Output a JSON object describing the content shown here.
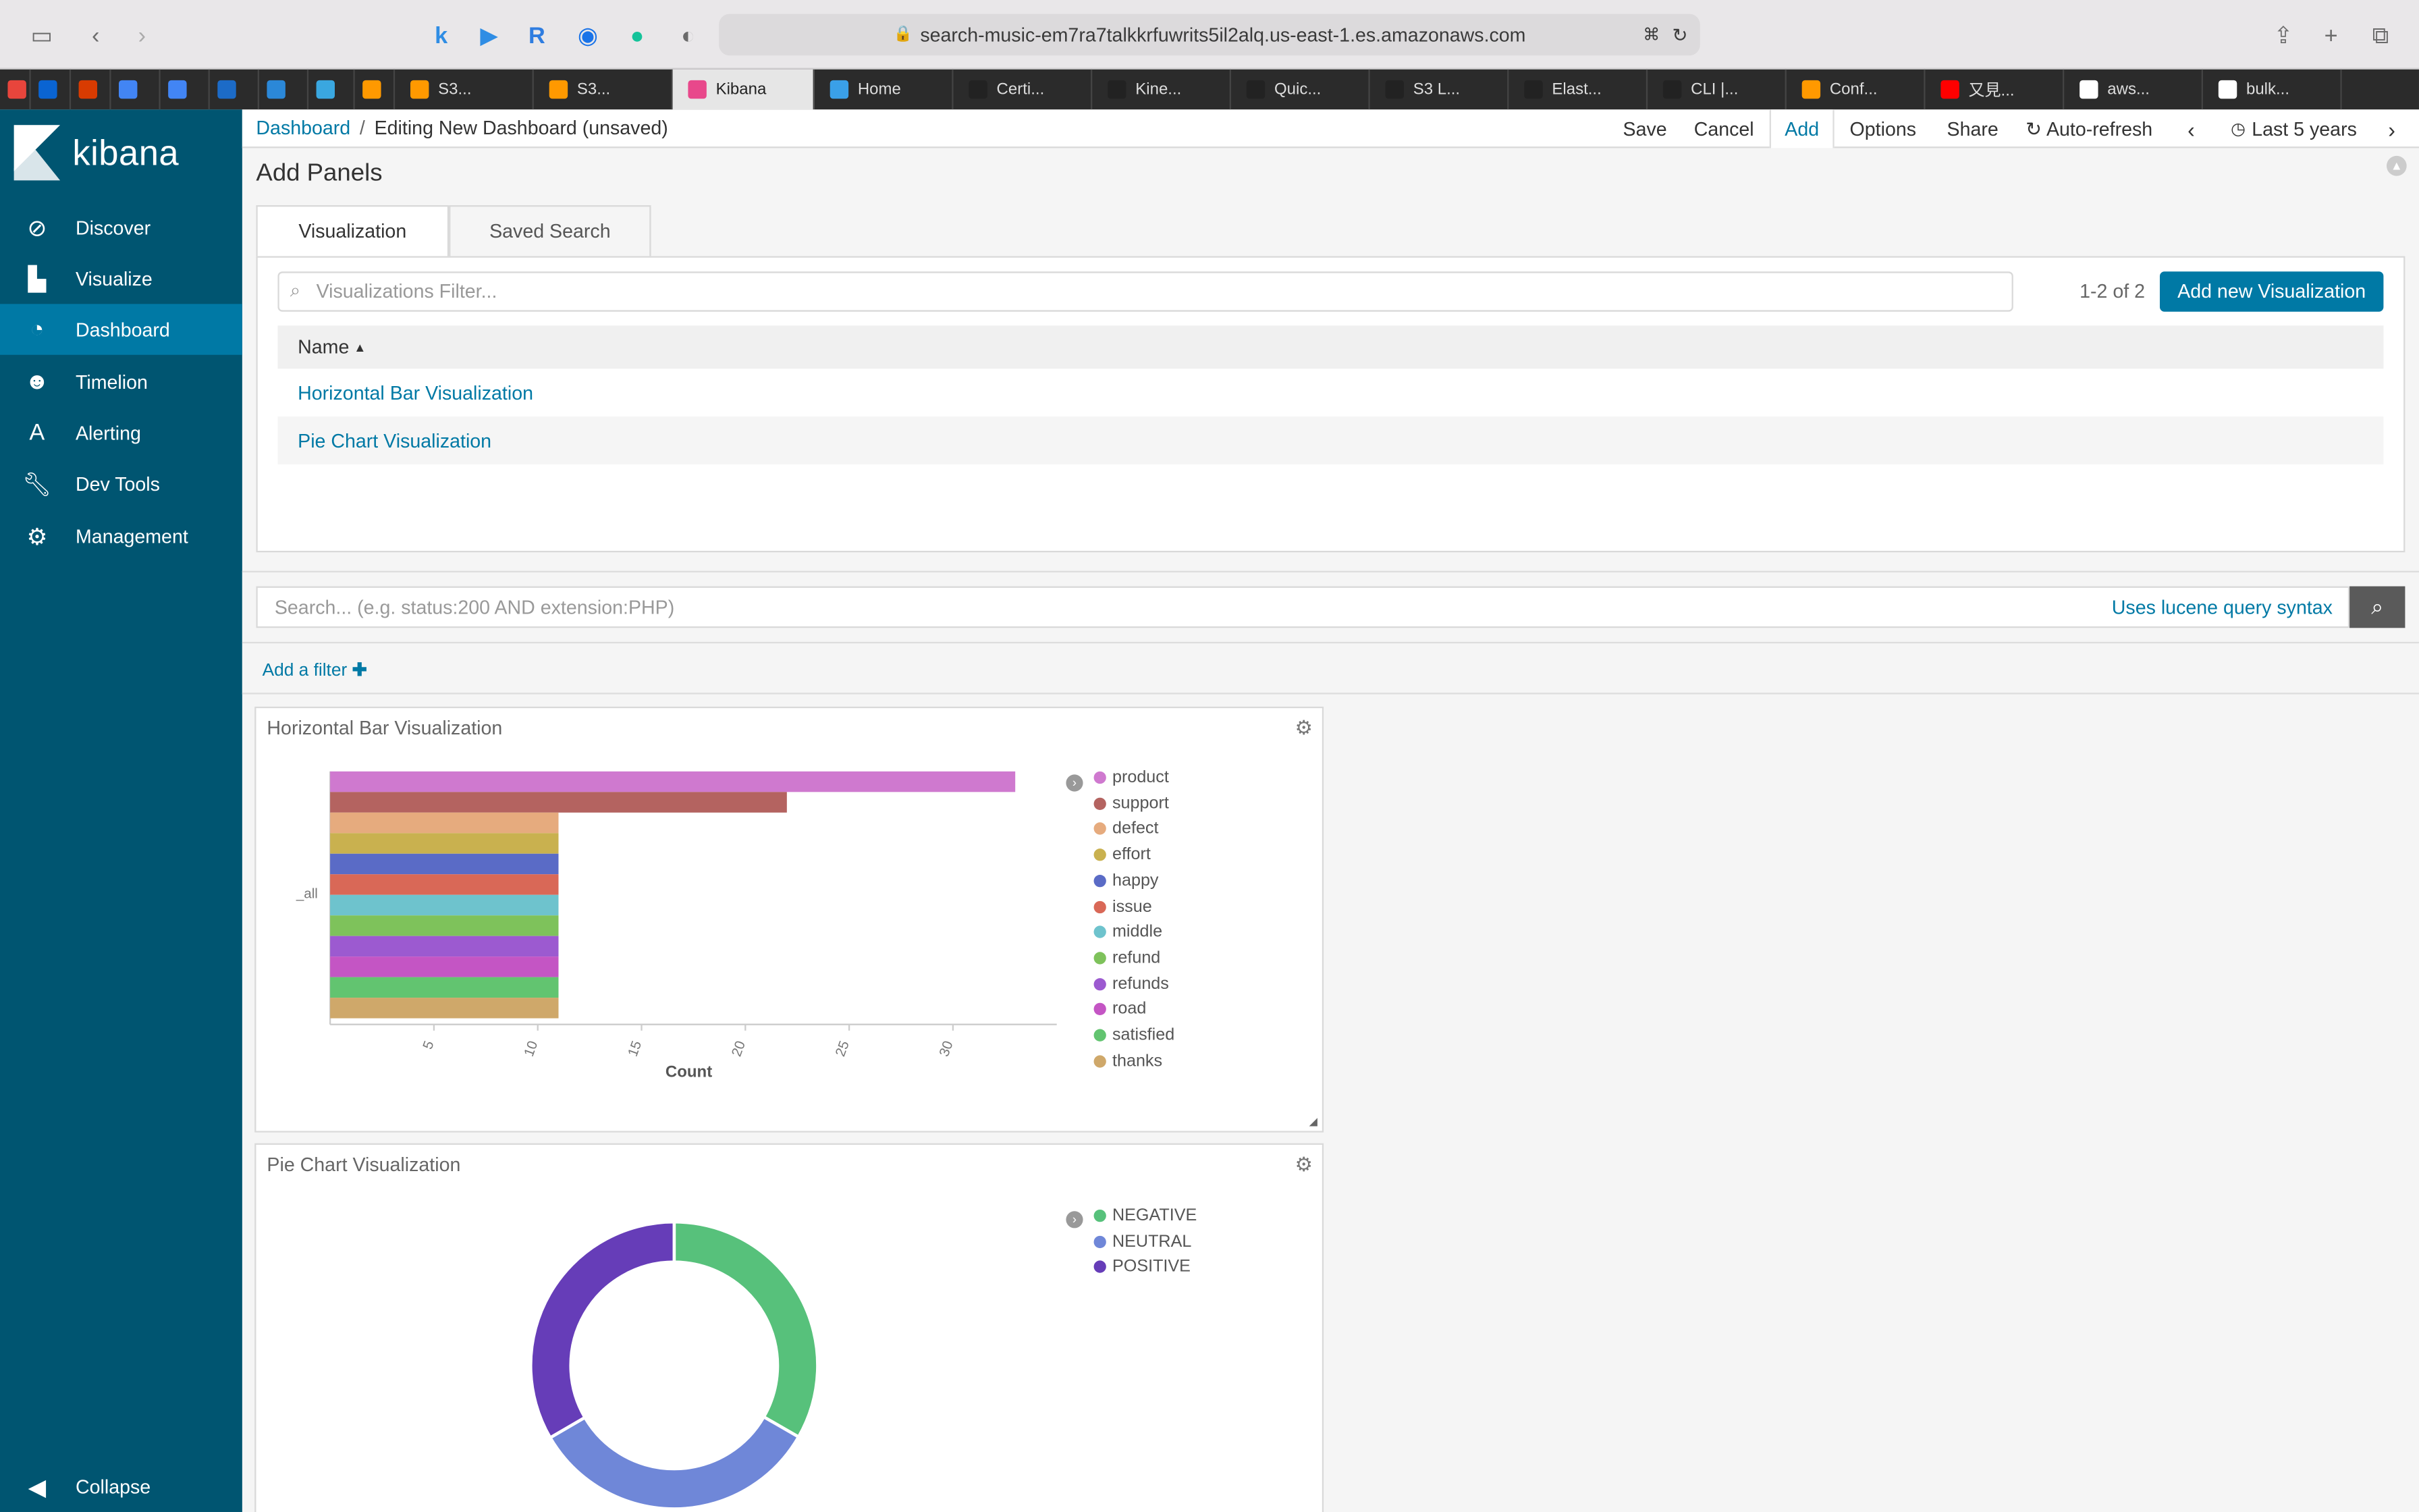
{
  "browser": {
    "url": "search-music-em7ra7talkkrfuwrits5il2alq.us-east-1.es.amazonaws.com",
    "tabs": [
      {
        "label": "",
        "color": "#e8453c"
      },
      {
        "label": "",
        "color": "#0a64d2"
      },
      {
        "label": "",
        "color": "#d83b01"
      },
      {
        "label": "",
        "color": "#4285f4"
      },
      {
        "label": "",
        "color": "#4285f4"
      },
      {
        "label": "",
        "color": "#1c6bc7"
      },
      {
        "label": "",
        "color": "#2b88d8"
      },
      {
        "label": "",
        "color": "#3aa7e0"
      },
      {
        "label": "",
        "color": "#ff9900"
      },
      {
        "label": "S3...",
        "color": "#ff9900"
      },
      {
        "label": "S3...",
        "color": "#ff9900"
      },
      {
        "label": "Kibana",
        "color": "#e8488b"
      },
      {
        "label": "Home",
        "color": "#3aa0e8"
      },
      {
        "label": "Certi...",
        "color": "#222222"
      },
      {
        "label": "Kine...",
        "color": "#222222"
      },
      {
        "label": "Quic...",
        "color": "#222222"
      },
      {
        "label": "S3 L...",
        "color": "#222222"
      },
      {
        "label": "Elast...",
        "color": "#222222"
      },
      {
        "label": "CLI |...",
        "color": "#222222"
      },
      {
        "label": "Conf...",
        "color": "#ff9900"
      },
      {
        "label": "又見...",
        "color": "#ff0000"
      },
      {
        "label": "aws...",
        "color": "#ffffff"
      },
      {
        "label": "bulk...",
        "color": "#ffffff"
      }
    ]
  },
  "sidebar": {
    "brand": "kibana",
    "items": [
      {
        "label": "Discover",
        "icon": "compass-icon"
      },
      {
        "label": "Visualize",
        "icon": "bar-chart-icon"
      },
      {
        "label": "Dashboard",
        "icon": "dashboard-icon"
      },
      {
        "label": "Timelion",
        "icon": "timelion-icon"
      },
      {
        "label": "Alerting",
        "icon": "alerting-icon"
      },
      {
        "label": "Dev Tools",
        "icon": "wrench-icon"
      },
      {
        "label": "Management",
        "icon": "gear-icon"
      }
    ],
    "collapse": "Collapse"
  },
  "topnav": {
    "crumb_root": "Dashboard",
    "separator": "/",
    "crumb_current": "Editing New Dashboard (unsaved)",
    "menu": {
      "save": "Save",
      "cancel": "Cancel",
      "add": "Add",
      "options": "Options",
      "share": "Share",
      "auto_refresh": "Auto-refresh",
      "timerange": "Last 5 years"
    }
  },
  "add_panels": {
    "title": "Add Panels",
    "tab_visualization": "Visualization",
    "tab_saved_search": "Saved Search",
    "filter_placeholder": "Visualizations Filter...",
    "count": "1-2 of 2",
    "add_new_button": "Add new Visualization",
    "column_name": "Name",
    "rows": [
      "Horizontal Bar Visualization",
      "Pie Chart Visualization"
    ]
  },
  "query": {
    "placeholder": "Search... (e.g. status:200 AND extension:PHP)",
    "syntax_link": "Uses lucene query syntax",
    "add_filter": "Add a filter"
  },
  "panels": {
    "bar_title": "Horizontal Bar Visualization",
    "pie_title": "Pie Chart Visualization"
  },
  "chart_data": [
    {
      "type": "bar",
      "orientation": "horizontal",
      "categories": [
        "_all"
      ],
      "xlabel": "Count",
      "ylabel": "",
      "xlim": [
        0,
        35
      ],
      "xticks": [
        "5",
        "10",
        "15",
        "20",
        "25",
        "30"
      ],
      "series": [
        {
          "name": "product",
          "values": [
            33
          ],
          "color": "#cf79cf"
        },
        {
          "name": "support",
          "values": [
            22
          ],
          "color": "#b46360"
        },
        {
          "name": "defect",
          "values": [
            11
          ],
          "color": "#e6ab7e"
        },
        {
          "name": "effort",
          "values": [
            11
          ],
          "color": "#c9b14f"
        },
        {
          "name": "happy",
          "values": [
            11
          ],
          "color": "#5a6bc6"
        },
        {
          "name": "issue",
          "values": [
            11
          ],
          "color": "#d96857"
        },
        {
          "name": "middle",
          "values": [
            11
          ],
          "color": "#6ec3cd"
        },
        {
          "name": "refund",
          "values": [
            11
          ],
          "color": "#7ec25b"
        },
        {
          "name": "refunds",
          "values": [
            11
          ],
          "color": "#9c5ad0"
        },
        {
          "name": "road",
          "values": [
            11
          ],
          "color": "#c455c4"
        },
        {
          "name": "satisfied",
          "values": [
            11
          ],
          "color": "#62c470"
        },
        {
          "name": "thanks",
          "values": [
            11
          ],
          "color": "#cfa86a"
        }
      ]
    },
    {
      "type": "pie",
      "donut": true,
      "slices": [
        {
          "name": "NEGATIVE",
          "value": 33.3,
          "color": "#57c17b"
        },
        {
          "name": "NEUTRAL",
          "value": 33.3,
          "color": "#6f87d8"
        },
        {
          "name": "POSITIVE",
          "value": 33.4,
          "color": "#663db8"
        }
      ]
    }
  ]
}
